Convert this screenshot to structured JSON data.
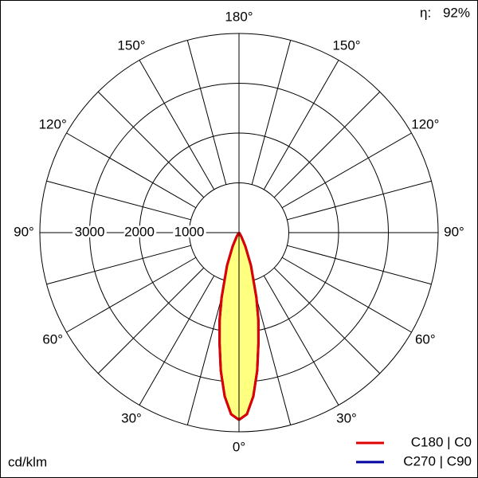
{
  "chart_data": {
    "type": "polar",
    "angles": [
      0,
      2.5,
      5,
      7.5,
      10,
      12.5,
      15,
      20,
      25,
      30,
      40,
      50,
      60,
      70,
      80,
      90
    ],
    "series": [
      {
        "name": "C180 | C0",
        "color": "#e00000",
        "values": [
          3760,
          3650,
          3300,
          2800,
          2250,
          1800,
          1350,
          700,
          300,
          100,
          20,
          0,
          0,
          0,
          0,
          0
        ]
      },
      {
        "name": "C270 | C90",
        "color": "#0000a0",
        "values": [
          3760,
          3650,
          3300,
          2800,
          2250,
          1800,
          1350,
          700,
          300,
          100,
          20,
          0,
          0,
          0,
          0,
          0
        ]
      }
    ],
    "fill": "#ffff80",
    "rlim": [
      0,
      4000
    ],
    "rticks": [
      1000,
      2000,
      3000
    ],
    "angle_ticks": [
      {
        "value": 0,
        "label": "0°"
      },
      {
        "value": 30,
        "label": "30°"
      },
      {
        "value": 60,
        "label": "60°"
      },
      {
        "value": 90,
        "label": "90°"
      },
      {
        "value": 120,
        "label": "120°"
      },
      {
        "value": 150,
        "label": "150°"
      },
      {
        "value": 180,
        "label": "180°"
      }
    ],
    "unit": "cd/klm",
    "efficiency_symbol": "η:",
    "efficiency": "92%"
  }
}
